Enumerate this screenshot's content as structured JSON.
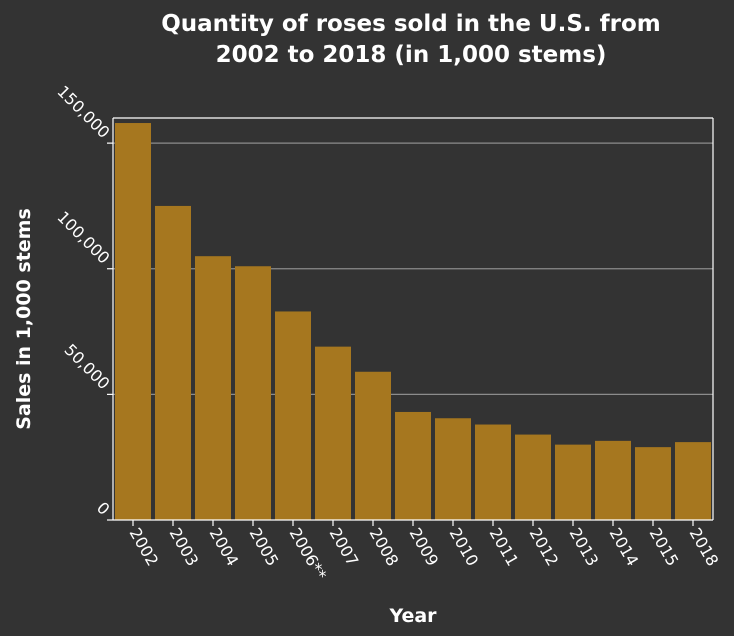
{
  "chart_data": {
    "type": "bar",
    "title": "Quantity of roses sold in the U.S. from 2002 to 2018 (in 1,000 stems)",
    "title_lines": [
      "Quantity of roses sold in the U.S. from",
      "2002 to 2018 (in 1,000 stems)"
    ],
    "xlabel": "Year",
    "ylabel": "Sales in 1,000 stems",
    "categories": [
      "2002",
      "2003",
      "2004",
      "2005",
      "2006**",
      "2007",
      "2008",
      "2009",
      "2010",
      "2011",
      "2012",
      "2013",
      "2014",
      "2015",
      "2018"
    ],
    "values": [
      158000,
      125000,
      105000,
      101000,
      83000,
      69000,
      59000,
      43000,
      40500,
      38000,
      34000,
      30000,
      31500,
      29000,
      31000
    ],
    "ylim": [
      0,
      160000
    ],
    "yticks": [
      0,
      50000,
      100000,
      150000
    ],
    "ytick_labels": [
      "0",
      "50,000",
      "100,000",
      "150,000"
    ],
    "grid": "horizontal",
    "legend": "none",
    "colors": {
      "background": "#333333",
      "bar": "#a6771f",
      "grid": "#8c8c8c",
      "text": "#ffffff",
      "axis": "#ffffff"
    }
  }
}
